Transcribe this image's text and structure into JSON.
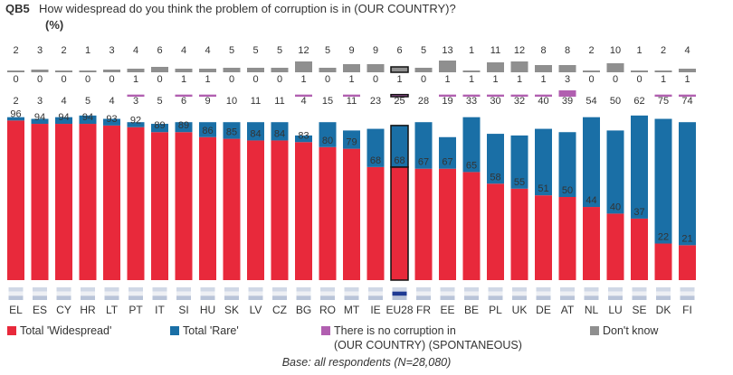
{
  "header": {
    "qcode": "QB5",
    "question": "How widespread do you think the problem of corruption is in (OUR COUNTRY)?",
    "unit": "(%)"
  },
  "chart_data": {
    "type": "bar",
    "stacked": true,
    "categories": [
      "EL",
      "ES",
      "CY",
      "HR",
      "LT",
      "PT",
      "IT",
      "SI",
      "HU",
      "SK",
      "LV",
      "CZ",
      "BG",
      "RO",
      "MT",
      "IE",
      "EU28",
      "FR",
      "EE",
      "BE",
      "PL",
      "UK",
      "DE",
      "AT",
      "NL",
      "LU",
      "SE",
      "DK",
      "FI"
    ],
    "highlight": "EU28",
    "ylim": [
      0,
      100
    ],
    "series": [
      {
        "name": "Total 'Widespread'",
        "color": "#e8293b",
        "values": [
          96,
          94,
          94,
          94,
          93,
          92,
          89,
          89,
          86,
          85,
          84,
          84,
          83,
          80,
          79,
          68,
          68,
          67,
          67,
          65,
          58,
          55,
          51,
          50,
          44,
          40,
          37,
          22,
          21
        ]
      },
      {
        "name": "Total 'Rare'",
        "color": "#1a6fa6",
        "values": [
          2,
          3,
          4,
          5,
          4,
          3,
          5,
          6,
          9,
          10,
          11,
          11,
          4,
          15,
          11,
          23,
          25,
          28,
          19,
          33,
          30,
          32,
          40,
          39,
          54,
          50,
          62,
          75,
          74
        ]
      },
      {
        "name": "There is no corruption in (OUR COUNTRY) (SPONTANEOUS)",
        "color": "#b15fb0",
        "values": [
          0,
          0,
          0,
          0,
          0,
          1,
          0,
          1,
          1,
          0,
          0,
          0,
          1,
          0,
          1,
          0,
          1,
          0,
          1,
          1,
          1,
          1,
          1,
          3,
          0,
          0,
          0,
          1,
          1
        ]
      },
      {
        "name": "Don't know",
        "color": "#8f8f8f",
        "values": [
          2,
          3,
          2,
          1,
          3,
          4,
          6,
          4,
          4,
          5,
          5,
          5,
          12,
          5,
          9,
          9,
          6,
          5,
          13,
          1,
          11,
          12,
          8,
          8,
          2,
          10,
          1,
          2,
          4
        ]
      }
    ]
  },
  "legend": {
    "widespread": "Total 'Widespread'",
    "rare": "Total 'Rare'",
    "none_line1": "There is no corruption in",
    "none_line2": "(OUR COUNTRY) (SPONTANEOUS)",
    "dontknow": "Don't know"
  },
  "footer": {
    "base": "Base: all respondents (N=28,080)"
  }
}
